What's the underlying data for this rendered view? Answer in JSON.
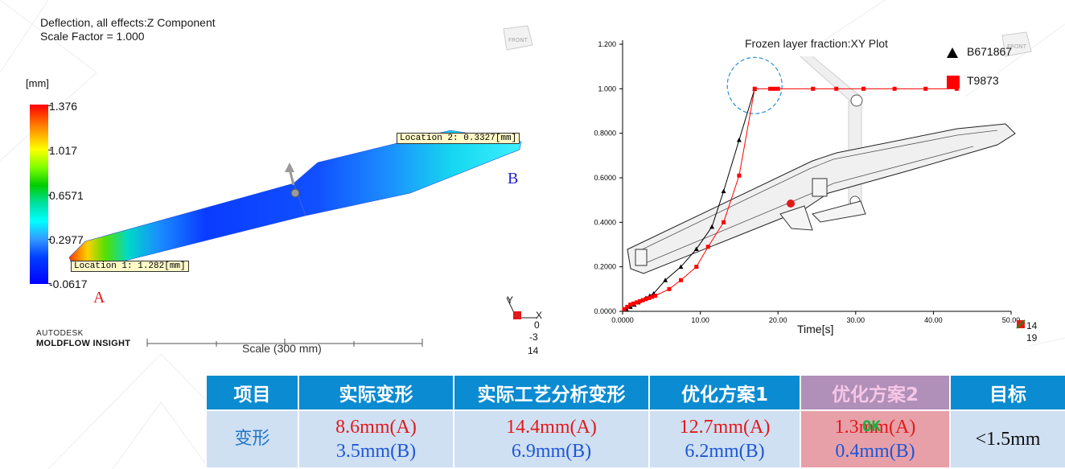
{
  "left_panel": {
    "title_line1": "Deflection, all effects:Z Component",
    "title_line2": "Scale Factor = 1.000",
    "unit": "[mm]",
    "legend_ticks": [
      "1.376",
      "1.017",
      "0.6571",
      "0.2977",
      "-0.0617"
    ],
    "location1": "Location 1: 1.282[mm]",
    "location2": "Location 2: 0.3327[mm]",
    "point_a": "A",
    "point_b": "B",
    "brand_line1": "AUTODESK",
    "brand_line2": "MOLDFLOW INSIGHT",
    "scale_label": "Scale (300 mm)",
    "axis_y": "Y",
    "axis_x": "X",
    "axis_nums": [
      "0",
      "-3",
      "14"
    ],
    "front_badge": "FRONT"
  },
  "right_panel": {
    "front_badge": "FRONT",
    "axis_nums": [
      "14",
      "19"
    ]
  },
  "chart_data": {
    "type": "line",
    "title": "Frozen layer fraction:XY Plot",
    "xlabel": "Time[s]",
    "ylabel": "",
    "xlim": [
      0,
      50
    ],
    "ylim": [
      0,
      1.2
    ],
    "x_ticks": [
      "0.0000",
      "10.00",
      "20.00",
      "30.00",
      "40.00",
      "50.00"
    ],
    "y_ticks": [
      "0.0000",
      "0.2000",
      "0.4000",
      "0.6000",
      "0.8000",
      "1.000",
      "1.200"
    ],
    "series": [
      {
        "name": "B671867",
        "color": "#000000",
        "marker": "triangle",
        "x": [
          0.5,
          1.0,
          1.5,
          2.0,
          2.5,
          3.0,
          3.5,
          4.0,
          5.5,
          7.5,
          9.5,
          11.5,
          13.0,
          15.0,
          17.0
        ],
        "y": [
          0.01,
          0.02,
          0.03,
          0.04,
          0.05,
          0.06,
          0.07,
          0.08,
          0.14,
          0.2,
          0.28,
          0.38,
          0.54,
          0.77,
          1.0
        ]
      },
      {
        "name": "T9873",
        "color": "#ff0000",
        "marker": "square",
        "x": [
          0.2,
          0.6,
          1.0,
          1.4,
          1.8,
          2.2,
          2.6,
          3.0,
          3.4,
          3.8,
          4.2,
          6.0,
          7.5,
          9.5,
          11.0,
          13.0,
          15.0,
          17.0,
          19.0,
          19.5,
          20.0,
          24.5,
          27.5,
          31.0,
          35.0,
          39.0,
          43.0
        ],
        "y": [
          0.01,
          0.02,
          0.03,
          0.035,
          0.04,
          0.045,
          0.05,
          0.055,
          0.06,
          0.065,
          0.07,
          0.1,
          0.14,
          0.2,
          0.29,
          0.4,
          0.61,
          1.0,
          1.0,
          1.0,
          1.0,
          1.0,
          1.0,
          1.0,
          1.0,
          1.0,
          1.0
        ]
      }
    ]
  },
  "table": {
    "headers": [
      "项目",
      "实际变形",
      "实际工艺分析变形",
      "优化方案1",
      "优化方案2",
      "目标"
    ],
    "row_label": "变形",
    "cells": [
      {
        "a": "8.6mm(A)",
        "b": "3.5mm(B)"
      },
      {
        "a": "14.4mm(A)",
        "b": "6.9mm(B)"
      },
      {
        "a": "12.7mm(A)",
        "b": "6.2mm(B)"
      },
      {
        "a": "1.3mm(A)",
        "b": "0.4mm(B)",
        "stamp": "OK"
      }
    ],
    "target": "<1.5mm",
    "colors": {
      "header": "#0b8bd1",
      "highlight_header": "#b08fb8",
      "cell": "#cfe0f3",
      "highlight_cell": "#e8a0a8",
      "red_text": "#e21a1a",
      "blue_text": "#1e57d6",
      "ok_text": "#17b342"
    }
  }
}
